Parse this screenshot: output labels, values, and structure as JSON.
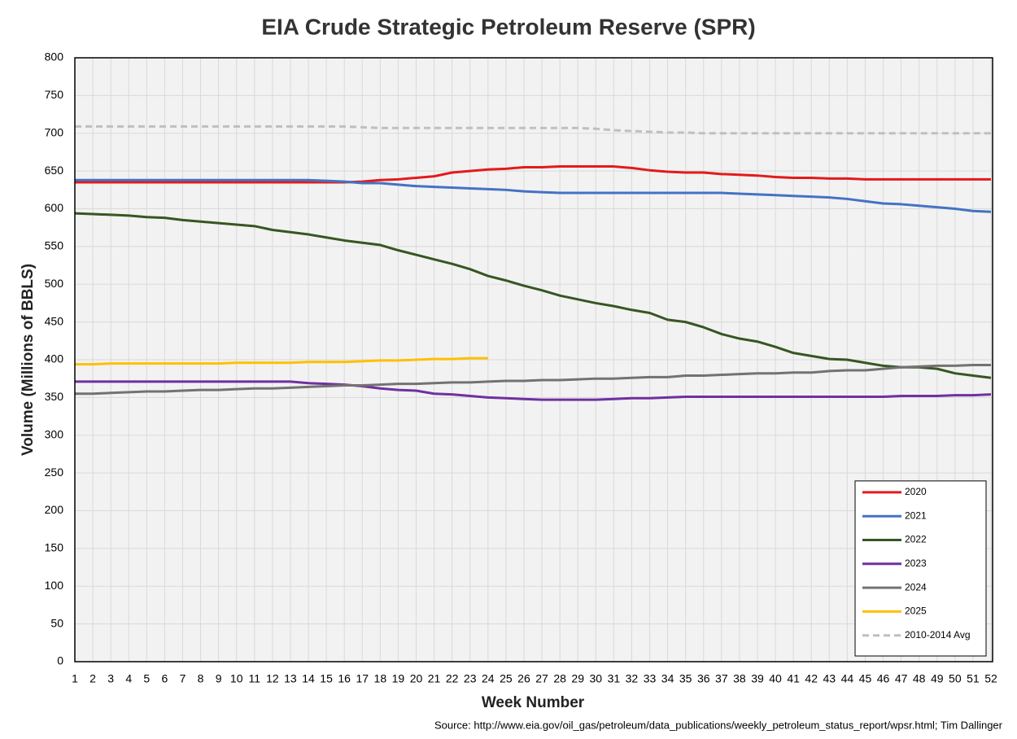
{
  "chart_data": {
    "type": "line",
    "title": "EIA Crude Strategic Petroleum Reserve (SPR)",
    "xlabel": "Week Number",
    "ylabel": "Volume (Millions of BBLS)",
    "source": "Source: http://www.eia.gov/oil_gas/petroleum/data_publications/weekly_petroleum_status_report/wpsr.html; Tim Dallinger",
    "x": [
      1,
      2,
      3,
      4,
      5,
      6,
      7,
      8,
      9,
      10,
      11,
      12,
      13,
      14,
      15,
      16,
      17,
      18,
      19,
      20,
      21,
      22,
      23,
      24,
      25,
      26,
      27,
      28,
      29,
      30,
      31,
      32,
      33,
      34,
      35,
      36,
      37,
      38,
      39,
      40,
      41,
      42,
      43,
      44,
      45,
      46,
      47,
      48,
      49,
      50,
      51,
      52
    ],
    "xlim": [
      1,
      52
    ],
    "xticks": [
      1,
      2,
      3,
      4,
      5,
      6,
      7,
      8,
      9,
      10,
      11,
      12,
      13,
      14,
      15,
      16,
      17,
      18,
      19,
      20,
      21,
      22,
      23,
      24,
      25,
      26,
      27,
      28,
      29,
      30,
      31,
      32,
      33,
      34,
      35,
      36,
      37,
      38,
      39,
      40,
      41,
      42,
      43,
      44,
      45,
      46,
      47,
      48,
      49,
      50,
      51,
      52
    ],
    "ylim": [
      0,
      800
    ],
    "yticks": [
      0,
      50,
      100,
      150,
      200,
      250,
      300,
      350,
      400,
      450,
      500,
      550,
      600,
      650,
      700,
      750,
      800
    ],
    "grid": true,
    "legend": "bottom-right",
    "series": [
      {
        "name": "2020",
        "color": "#e31a1c",
        "values": [
          635,
          635,
          635,
          635,
          635,
          635,
          635,
          635,
          635,
          635,
          635,
          635,
          635,
          635,
          635,
          635,
          636,
          638,
          639,
          641,
          643,
          648,
          650,
          652,
          653,
          655,
          655,
          656,
          656,
          656,
          656,
          654,
          651,
          649,
          648,
          648,
          646,
          645,
          644,
          642,
          641,
          641,
          640,
          640,
          639,
          639,
          639,
          639,
          639,
          639,
          639,
          639
        ]
      },
      {
        "name": "2021",
        "color": "#4472c4",
        "values": [
          638,
          638,
          638,
          638,
          638,
          638,
          638,
          638,
          638,
          638,
          638,
          638,
          638,
          638,
          637,
          636,
          634,
          634,
          632,
          630,
          629,
          628,
          627,
          626,
          625,
          623,
          622,
          621,
          621,
          621,
          621,
          621,
          621,
          621,
          621,
          621,
          621,
          620,
          619,
          618,
          617,
          616,
          615,
          613,
          610,
          607,
          606,
          604,
          602,
          600,
          597,
          596
        ]
      },
      {
        "name": "2022",
        "color": "#375623",
        "values": [
          594,
          593,
          592,
          591,
          589,
          588,
          585,
          583,
          581,
          579,
          577,
          572,
          569,
          566,
          562,
          558,
          555,
          552,
          545,
          539,
          533,
          527,
          520,
          511,
          505,
          498,
          492,
          485,
          480,
          475,
          471,
          466,
          462,
          453,
          450,
          443,
          434,
          428,
          424,
          417,
          409,
          405,
          401,
          400,
          396,
          392,
          390,
          390,
          388,
          382,
          379,
          376
        ]
      },
      {
        "name": "2023",
        "color": "#7030a0",
        "values": [
          371,
          371,
          371,
          371,
          371,
          371,
          371,
          371,
          371,
          371,
          371,
          371,
          371,
          369,
          368,
          367,
          365,
          362,
          360,
          359,
          355,
          354,
          352,
          350,
          349,
          348,
          347,
          347,
          347,
          347,
          348,
          349,
          349,
          350,
          351,
          351,
          351,
          351,
          351,
          351,
          351,
          351,
          351,
          351,
          351,
          351,
          352,
          352,
          352,
          353,
          353,
          354
        ]
      },
      {
        "name": "2024",
        "color": "#767171",
        "values": [
          355,
          355,
          356,
          357,
          358,
          358,
          359,
          360,
          360,
          361,
          362,
          362,
          363,
          364,
          365,
          366,
          366,
          367,
          368,
          368,
          369,
          370,
          370,
          371,
          372,
          372,
          373,
          373,
          374,
          375,
          375,
          376,
          377,
          377,
          379,
          379,
          380,
          381,
          382,
          382,
          383,
          383,
          385,
          386,
          386,
          388,
          390,
          391,
          392,
          392,
          393,
          393
        ]
      },
      {
        "name": "2025",
        "color": "#ffc000",
        "values": [
          394,
          394,
          395,
          395,
          395,
          395,
          395,
          395,
          395,
          396,
          396,
          396,
          396,
          397,
          397,
          397,
          398,
          399,
          399,
          400,
          401,
          401,
          402,
          402,
          null,
          null,
          null,
          null,
          null,
          null,
          null,
          null,
          null,
          null,
          null,
          null,
          null,
          null,
          null,
          null,
          null,
          null,
          null,
          null,
          null,
          null,
          null,
          null,
          null,
          null,
          null,
          null
        ]
      },
      {
        "name": "2010-2014 Avg",
        "color": "#bfbfbf",
        "linestyle": "dashed",
        "values": [
          709,
          709,
          709,
          709,
          709,
          709,
          709,
          709,
          709,
          709,
          709,
          709,
          709,
          709,
          709,
          709,
          708,
          707,
          707,
          707,
          707,
          707,
          707,
          707,
          707,
          707,
          707,
          707,
          707,
          706,
          704,
          703,
          702,
          701,
          701,
          700,
          700,
          700,
          700,
          700,
          700,
          700,
          700,
          700,
          700,
          700,
          700,
          700,
          700,
          700,
          700,
          700
        ]
      }
    ]
  }
}
